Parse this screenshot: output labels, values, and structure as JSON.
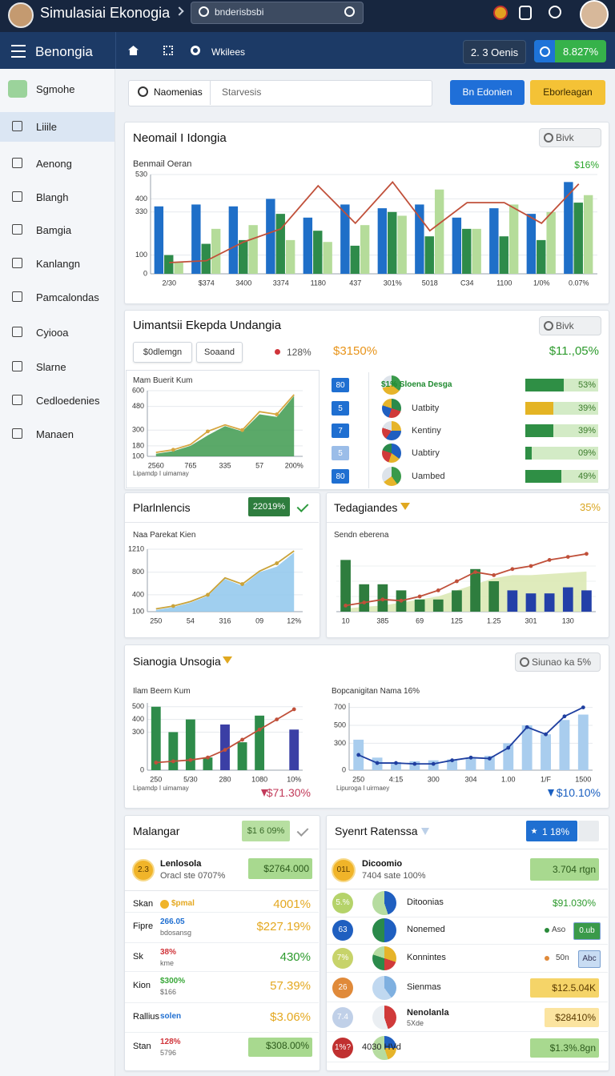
{
  "topbar": {
    "title": "Simulasiai Ekonogia",
    "search": "bnderisbsbi"
  },
  "navbar": {
    "title": "Benongia",
    "link": "Wkilees",
    "button1": "2. 3 Oenis",
    "button2": "8.827%"
  },
  "sidebar": [
    "Sgmohe",
    "Liiile",
    "Aenong",
    "Blangh",
    "Bamgia",
    "Kanlangn",
    "Pamcalondas",
    "Cyiooa",
    "Slarne",
    "Cedloedenies",
    "Manaen"
  ],
  "filters": {
    "search": "Naomenias",
    "placeholder": "Starvesis",
    "button1": "Bn Edonien",
    "button2": "Eborleagan"
  },
  "panels": [
    {
      "title": "Neomail I Idongia",
      "badge": "Bivk",
      "subtitle": "Benmail Oeran",
      "stat": "$16%"
    },
    {
      "title": "Uimantsii Ekepda Undangia",
      "badge": "Bivk",
      "chips": [
        "$0dlemgn",
        "Soaand"
      ],
      "stats": [
        "128%",
        "$3150%",
        "$11.,05%"
      ],
      "list": [
        {
          "badge": "80",
          "label": "$1% Sloena Desga",
          "value": 53,
          "value_label": "53%"
        },
        {
          "badge": "5",
          "label": "Uatbity",
          "value": 39,
          "value_label": "39%"
        },
        {
          "badge": "7",
          "label": "Kentiny",
          "value": 39,
          "value_label": "39%"
        },
        {
          "badge": "5",
          "label": "Uabtiry",
          "value": 9,
          "value_label": "09%"
        },
        {
          "badge": "80",
          "label": "Uambed",
          "value": 49,
          "value_label": "49%"
        }
      ]
    },
    {
      "title": "Plarlnlencis",
      "badge": "22019%"
    },
    {
      "title": "Tedagiandes",
      "stat": "35%"
    },
    {
      "title": "Sianogia Unsogia",
      "badge": "Siunao ka 5%",
      "stats": [
        "$71.30%",
        "$10.10%"
      ]
    },
    {
      "title": "Malangar",
      "badge": "$1 6 09%",
      "head": {
        "badge": "2.3",
        "name": "Lenlosola",
        "sub": "Oracl ste 0707%",
        "value": "$2764.000"
      },
      "rows": [
        {
          "label": "Skan",
          "tag": "$pmal",
          "value": "4001%"
        },
        {
          "label": "Fipre",
          "tag": "266.05",
          "sub": "bdosansg",
          "value": "$227.19%"
        },
        {
          "label": "Sk",
          "tag": "38%",
          "sub": "kme",
          "value": "430%"
        },
        {
          "label": "Kion",
          "tag": "$300%",
          "sub": "$166",
          "value": "57.39%"
        },
        {
          "label": "Rallius",
          "tag": "solen",
          "value": "$3.06%"
        },
        {
          "label": "Stan",
          "tag": "128%",
          "sub": "5796",
          "value": "$308.00%"
        }
      ]
    },
    {
      "title": "Syenrt Ratenssa",
      "badge": "1 18%",
      "head": {
        "badge": "01L",
        "name": "Dicoomio",
        "sub": "7404 sate 100%",
        "value": "3.704 rtgn"
      },
      "rows": [
        {
          "badge": "5.%",
          "label": "Ditoonias",
          "value": "$91.030%"
        },
        {
          "badge": "63",
          "label": "Nonemed",
          "tag": "Aso",
          "value": "0.ub"
        },
        {
          "badge": "7%",
          "label": "Konnintes",
          "tag": "50n",
          "value": "Abc"
        },
        {
          "badge": "26",
          "label": "Sienmas",
          "value": "$12.5.04K"
        },
        {
          "badge": "7.4",
          "label": "Nenolanla",
          "sub": "5Xde",
          "value": "$28410%"
        },
        {
          "badge": "1%?",
          "label": "4030 HVd",
          "value": "$1.3%.8gn"
        }
      ]
    }
  ],
  "charts": [
    {
      "type": "combo",
      "bar_layout": "grouped",
      "ylim": [
        0,
        530
      ],
      "yticks": [
        0,
        100,
        330,
        400,
        530
      ],
      "grid": true,
      "categories": [
        "2/30",
        "$374",
        "3400",
        "3374",
        "1180",
        "437",
        "301%",
        "5018",
        "C34",
        "1100",
        "1/0%",
        "0.07%"
      ],
      "series": [
        {
          "kind": "bar",
          "color": "#1f6fc8",
          "values": [
            360,
            370,
            360,
            400,
            300,
            370,
            350,
            370,
            300,
            350,
            320,
            490
          ]
        },
        {
          "kind": "bar",
          "color": "#2e8b4a",
          "values": [
            100,
            160,
            180,
            320,
            230,
            150,
            330,
            200,
            240,
            200,
            180,
            380
          ]
        },
        {
          "kind": "bar",
          "color": "#b5dc9a",
          "values": [
            60,
            240,
            260,
            180,
            170,
            260,
            310,
            450,
            240,
            370,
            330,
            420
          ]
        },
        {
          "kind": "line",
          "color": "#c0503a",
          "values": [
            60,
            70,
            170,
            240,
            470,
            270,
            490,
            230,
            380,
            380,
            270,
            480
          ]
        }
      ]
    },
    {
      "type": "area",
      "title": "Mam Buerit Kum",
      "caption": "Lipamdp I uimamay",
      "ylim": [
        100,
        600
      ],
      "yticks": [
        100,
        180,
        300,
        480,
        600
      ],
      "grid": true,
      "categories": [
        "2560",
        null,
        "765",
        null,
        "335",
        null,
        "57",
        null,
        "200%"
      ],
      "series": [
        {
          "kind": "area",
          "color": "#3e9a4f",
          "values": [
            120,
            140,
            180,
            260,
            330,
            290,
            420,
            400,
            560
          ]
        },
        {
          "kind": "line",
          "color": "#d6a640",
          "dots": true,
          "values": [
            130,
            150,
            190,
            290,
            340,
            300,
            440,
            420,
            570
          ]
        }
      ]
    },
    {
      "type": "area",
      "title": "Naa Parekat Kien",
      "ylim": [
        100,
        1210
      ],
      "yticks": [
        100,
        400,
        800,
        1210
      ],
      "grid": true,
      "categories": [
        "250",
        null,
        "54",
        null,
        "316",
        null,
        "09",
        null,
        "12%"
      ],
      "series": [
        {
          "kind": "area",
          "color": "#8fc7ec",
          "values": [
            130,
            180,
            260,
            380,
            680,
            560,
            800,
            900,
            1150
          ]
        },
        {
          "kind": "line",
          "color": "#c9a33a",
          "dots": true,
          "values": [
            150,
            200,
            280,
            400,
            700,
            590,
            820,
            960,
            1180
          ]
        }
      ]
    },
    {
      "type": "combo",
      "title": "Sendn eberena",
      "bar_layout": "overlap",
      "ylim": [
        0,
        100
      ],
      "grid": true,
      "categories": [
        "10",
        null,
        "385",
        null,
        "69",
        null,
        "125",
        null,
        "1.25",
        null,
        "301",
        null,
        "130",
        null
      ],
      "series": [
        {
          "kind": "area",
          "color": "#d9e7b0",
          "values": [
            5,
            8,
            10,
            15,
            20,
            25,
            35,
            45,
            55,
            60,
            60,
            62,
            64,
            66
          ]
        },
        {
          "kind": "bar",
          "color": "#2e7d3e",
          "values": [
            85,
            45,
            45,
            35,
            20,
            20,
            35,
            70,
            50,
            null,
            null,
            null,
            null,
            null
          ]
        },
        {
          "kind": "bar",
          "color": "#2340a8",
          "values": [
            null,
            null,
            null,
            null,
            null,
            null,
            null,
            null,
            null,
            35,
            30,
            30,
            40,
            35
          ]
        },
        {
          "kind": "line",
          "color": "#c0503a",
          "dots": true,
          "values": [
            10,
            15,
            20,
            18,
            25,
            35,
            50,
            65,
            60,
            70,
            75,
            85,
            90,
            95
          ]
        }
      ]
    },
    {
      "type": "combo",
      "title": "Ilam Beern Kum",
      "caption": "Lipamdp I uimamay",
      "bar_layout": "overlap",
      "ylim": [
        0,
        530
      ],
      "yticks": [
        0,
        300,
        400,
        500
      ],
      "grid": true,
      "categories": [
        "250",
        null,
        "5/30",
        null,
        "280",
        null,
        "1080",
        null,
        "10%"
      ],
      "series": [
        {
          "kind": "bar",
          "color": "#2e8b4a",
          "values": [
            500,
            300,
            400,
            100,
            null,
            220,
            430,
            null,
            null
          ]
        },
        {
          "kind": "bar",
          "color": "#3b3fa5",
          "values": [
            null,
            null,
            null,
            null,
            360,
            null,
            null,
            null,
            320
          ]
        },
        {
          "kind": "line",
          "color": "#c0503a",
          "dots": true,
          "values": [
            60,
            70,
            80,
            100,
            160,
            240,
            320,
            400,
            480
          ]
        }
      ]
    },
    {
      "type": "combo",
      "title": "Bopcanigitan Nama 16%",
      "caption": "Lipuroga I uirmaey",
      "bar_layout": "overlap",
      "ylim": [
        0,
        750
      ],
      "yticks": [
        0,
        300,
        500,
        700
      ],
      "grid": true,
      "categories": [
        "250",
        null,
        "4:15",
        null,
        "300",
        null,
        "304",
        null,
        "1.00",
        null,
        "1/F",
        null,
        "1500"
      ],
      "series": [
        {
          "kind": "bar",
          "color": "#a9cdee",
          "values": [
            340,
            140,
            90,
            100,
            110,
            120,
            140,
            160,
            300,
            500,
            400,
            560,
            620
          ]
        },
        {
          "kind": "line",
          "color": "#1f3fa0",
          "dots": true,
          "values": [
            170,
            80,
            80,
            70,
            70,
            110,
            140,
            130,
            250,
            480,
            400,
            600,
            700
          ]
        }
      ]
    }
  ]
}
